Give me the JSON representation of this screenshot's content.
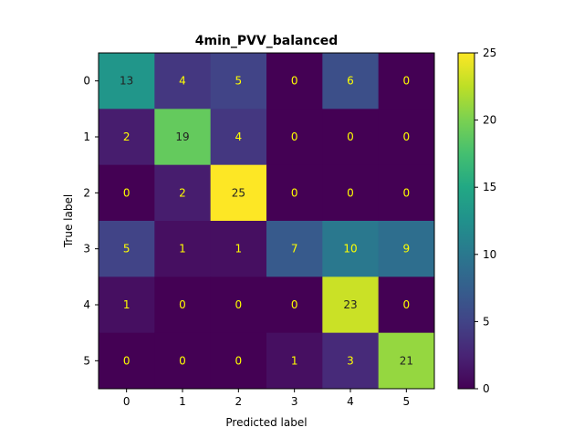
{
  "chart_data": {
    "type": "heatmap",
    "title": "4min_PVV_balanced",
    "xlabel": "Predicted label",
    "ylabel": "True label",
    "x_categories": [
      "0",
      "1",
      "2",
      "3",
      "4",
      "5"
    ],
    "y_categories": [
      "0",
      "1",
      "2",
      "3",
      "4",
      "5"
    ],
    "values": [
      [
        13,
        4,
        5,
        0,
        6,
        0
      ],
      [
        2,
        19,
        4,
        0,
        0,
        0
      ],
      [
        0,
        2,
        25,
        0,
        0,
        0
      ],
      [
        5,
        1,
        1,
        7,
        10,
        9
      ],
      [
        1,
        0,
        0,
        0,
        23,
        0
      ],
      [
        0,
        0,
        0,
        1,
        3,
        21
      ]
    ],
    "colormap": "viridis",
    "vmin": 0,
    "vmax": 25,
    "colorbar_ticks": [
      "0",
      "5",
      "10",
      "15",
      "20",
      "25"
    ],
    "text_color_low": "#ffff00",
    "text_color_high": "#222222"
  }
}
